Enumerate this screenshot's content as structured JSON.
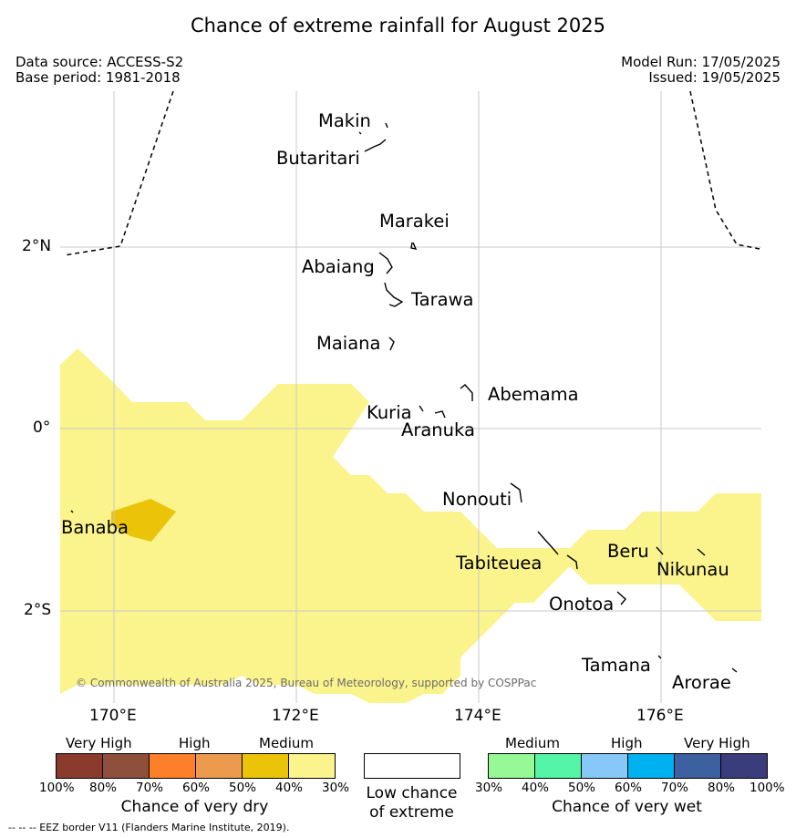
{
  "title": "Chance of extreme rainfall for August 2025",
  "data_source": "Data source: ACCESS-S2",
  "base_period": "Base period: 1981-2018",
  "model_run": "Model Run: 17/05/2025",
  "issued": "Issued: 19/05/2025",
  "places": {
    "makin": "Makin",
    "butaritari": "Butaritari",
    "marakei": "Marakei",
    "abaiang": "Abaiang",
    "tarawa": "Tarawa",
    "maiana": "Maiana",
    "abemama": "Abemama",
    "kuria": "Kuria",
    "aranuka": "Aranuka",
    "nonouti": "Nonouti",
    "banaba": "Banaba",
    "tabiteuea": "Tabiteuea",
    "beru": "Beru",
    "nikunau": "Nikunau",
    "onotoa": "Onotoa",
    "tamana": "Tamana",
    "arorae": "Arorae"
  },
  "axes": {
    "lat": [
      "2°N",
      "0°",
      "2°S"
    ],
    "lon": [
      "170°E",
      "172°E",
      "174°E",
      "176°E"
    ]
  },
  "copyright": "© Commonwealth of Australia 2025, Bureau of Meteorology, supported by COSPPac",
  "legend": {
    "dry": {
      "heads": [
        "Very High",
        "High",
        "Medium"
      ],
      "ticks": [
        "100%",
        "80%",
        "70%",
        "60%",
        "50%",
        "40%",
        "30%"
      ],
      "colors": [
        "#8b3a2e",
        "#8e4f3c",
        "#fd7f2a",
        "#ec9a4d",
        "#ebc40a",
        "#fbf48d"
      ],
      "caption": "Chance of very dry"
    },
    "low": {
      "caption_line1": "Low chance",
      "caption_line2": "of extreme",
      "color": "#ffffff"
    },
    "wet": {
      "heads": [
        "Medium",
        "High",
        "Very High"
      ],
      "ticks": [
        "30%",
        "40%",
        "50%",
        "60%",
        "70%",
        "80%",
        "100%"
      ],
      "colors": [
        "#96f996",
        "#54f5a6",
        "#87c8f9",
        "#00b1ef",
        "#3c60a0",
        "#3b3c7c"
      ],
      "caption": "Chance of very wet"
    }
  },
  "footnote": "--  --  -- EEZ border V11 (Flanders Marine Institute, 2019).",
  "map_colors": {
    "medium_dry": "#fbf48d",
    "high_dry": "#ebc40a",
    "grid": "#c8c8c8"
  }
}
